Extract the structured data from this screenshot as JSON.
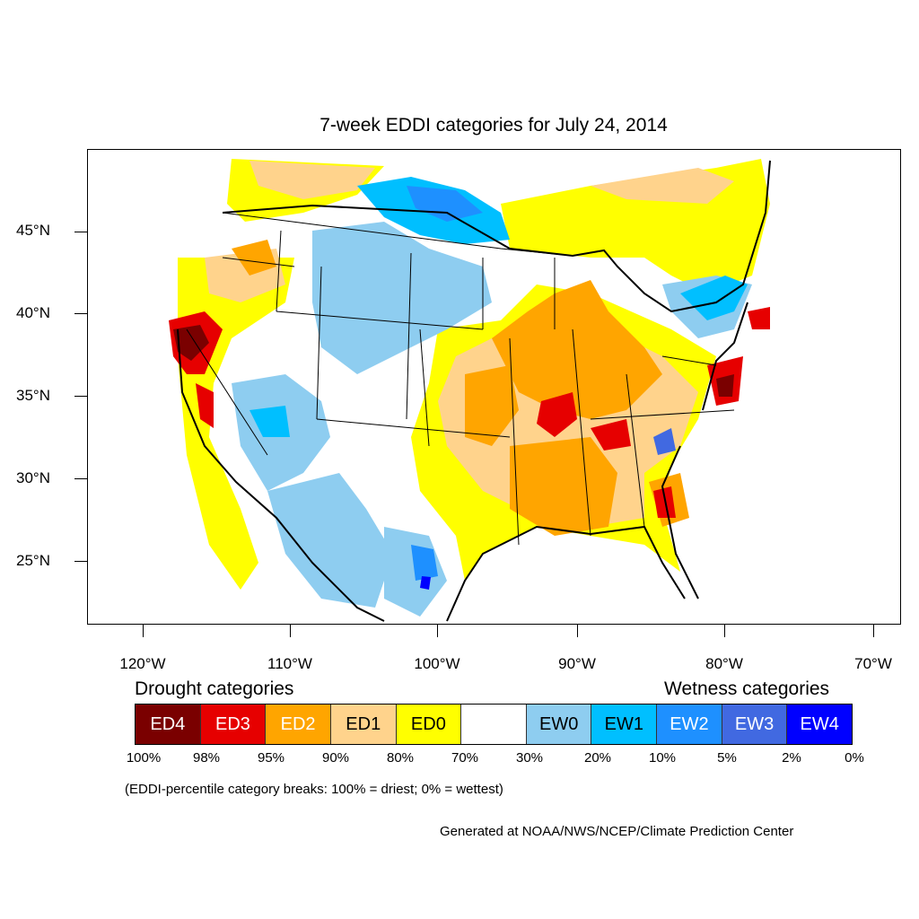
{
  "title": "7-week EDDI categories for July 24, 2014",
  "lat_labels": [
    "45°N",
    "40°N",
    "35°N",
    "30°N",
    "25°N"
  ],
  "lon_labels": [
    "120°W",
    "110°W",
    "100°W",
    "90°W",
    "80°W",
    "70°W"
  ],
  "legend": {
    "drought_heading": "Drought categories",
    "wetness_heading": "Wetness categories",
    "categories": [
      {
        "label": "ED4",
        "color": "#7a0000",
        "text_color": "#ffffff"
      },
      {
        "label": "ED3",
        "color": "#e60000",
        "text_color": "#ffffff"
      },
      {
        "label": "ED2",
        "color": "#ffa500",
        "text_color": "#ffffff"
      },
      {
        "label": "ED1",
        "color": "#ffd38c",
        "text_color": "#000000"
      },
      {
        "label": "ED0",
        "color": "#ffff00",
        "text_color": "#000000"
      },
      {
        "label": "",
        "color": "#ffffff",
        "text_color": "#000000"
      },
      {
        "label": "EW0",
        "color": "#8ecdf0",
        "text_color": "#000000"
      },
      {
        "label": "EW1",
        "color": "#00bfff",
        "text_color": "#000000"
      },
      {
        "label": "EW2",
        "color": "#1e90ff",
        "text_color": "#ffffff"
      },
      {
        "label": "EW3",
        "color": "#4169e1",
        "text_color": "#ffffff"
      },
      {
        "label": "EW4",
        "color": "#0000ff",
        "text_color": "#ffffff"
      }
    ],
    "percent_breaks": [
      "100%",
      "98%",
      "95%",
      "90%",
      "80%",
      "70%",
      "30%",
      "20%",
      "10%",
      "5%",
      "2%",
      "0%"
    ]
  },
  "note": "(EDDI-percentile category breaks: 100% = driest; 0% = wettest)",
  "credit": "Generated at NOAA/NWS/NCEP/Climate Prediction Center"
}
